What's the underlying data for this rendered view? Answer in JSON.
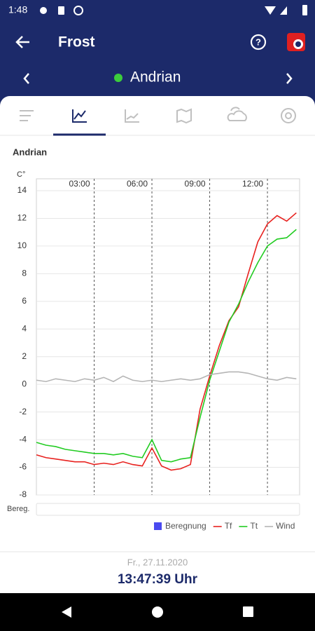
{
  "status_bar": {
    "time": "1:48"
  },
  "app_bar": {
    "title": "Frost"
  },
  "station_bar": {
    "name": "Andrian"
  },
  "chart_data": {
    "type": "line",
    "title": "Andrian",
    "y_label": "C°",
    "row_label": "Bereg.",
    "x": [
      0,
      0.5,
      1,
      1.5,
      2,
      2.5,
      3,
      3.5,
      4,
      4.5,
      5,
      5.5,
      6,
      6.5,
      7,
      7.5,
      8,
      8.5,
      9,
      9.5,
      10,
      10.5,
      11,
      11.5,
      12,
      12.5,
      13,
      13.5
    ],
    "xlim": [
      0,
      13.67
    ],
    "xticks": [
      {
        "value": 3,
        "label": "03:00"
      },
      {
        "value": 6,
        "label": "06:00"
      },
      {
        "value": 9,
        "label": "09:00"
      },
      {
        "value": 12,
        "label": "12:00"
      }
    ],
    "ylim": [
      -8,
      14
    ],
    "yticks": [
      -8,
      -6,
      -4,
      -2,
      0,
      2,
      4,
      6,
      8,
      10,
      12,
      14
    ],
    "grid": true,
    "series": [
      {
        "name": "Beregnung",
        "color": "#4a4af0",
        "style": "bar",
        "values": [
          null,
          null,
          null,
          null,
          null,
          null,
          null,
          null,
          null,
          null,
          null,
          null,
          null,
          null,
          null,
          null,
          null,
          null,
          null,
          null,
          null,
          null,
          null,
          null,
          null,
          null,
          null,
          null
        ]
      },
      {
        "name": "Tf",
        "color": "#e8221f",
        "style": "line",
        "values": [
          -5.1,
          -5.3,
          -5.4,
          -5.5,
          -5.6,
          -5.6,
          -5.8,
          -5.7,
          -5.8,
          -5.6,
          -5.8,
          -5.9,
          -4.6,
          -5.9,
          -6.2,
          -6.1,
          -5.8,
          -1.8,
          0.6,
          2.8,
          4.6,
          5.6,
          8.0,
          10.3,
          11.6,
          12.2,
          11.8,
          12.4
        ]
      },
      {
        "name": "Tt",
        "color": "#22cc22",
        "style": "line",
        "values": [
          -4.2,
          -4.4,
          -4.5,
          -4.7,
          -4.8,
          -4.9,
          -5.0,
          -5.0,
          -5.1,
          -5.0,
          -5.2,
          -5.3,
          -4.0,
          -5.5,
          -5.6,
          -5.4,
          -5.3,
          -2.4,
          0.3,
          2.4,
          4.5,
          5.8,
          7.4,
          8.8,
          10.0,
          10.5,
          10.6,
          11.2
        ]
      },
      {
        "name": "Wind",
        "color": "#b5b5b5",
        "style": "line",
        "values": [
          0.3,
          0.2,
          0.4,
          0.3,
          0.2,
          0.4,
          0.3,
          0.5,
          0.2,
          0.6,
          0.3,
          0.2,
          0.3,
          0.2,
          0.3,
          0.4,
          0.3,
          0.4,
          0.7,
          0.8,
          0.9,
          0.9,
          0.8,
          0.6,
          0.4,
          0.3,
          0.5,
          0.4
        ]
      }
    ]
  },
  "footer": {
    "date": "Fr., 27.11.2020",
    "time": "13:47:39 Uhr"
  }
}
